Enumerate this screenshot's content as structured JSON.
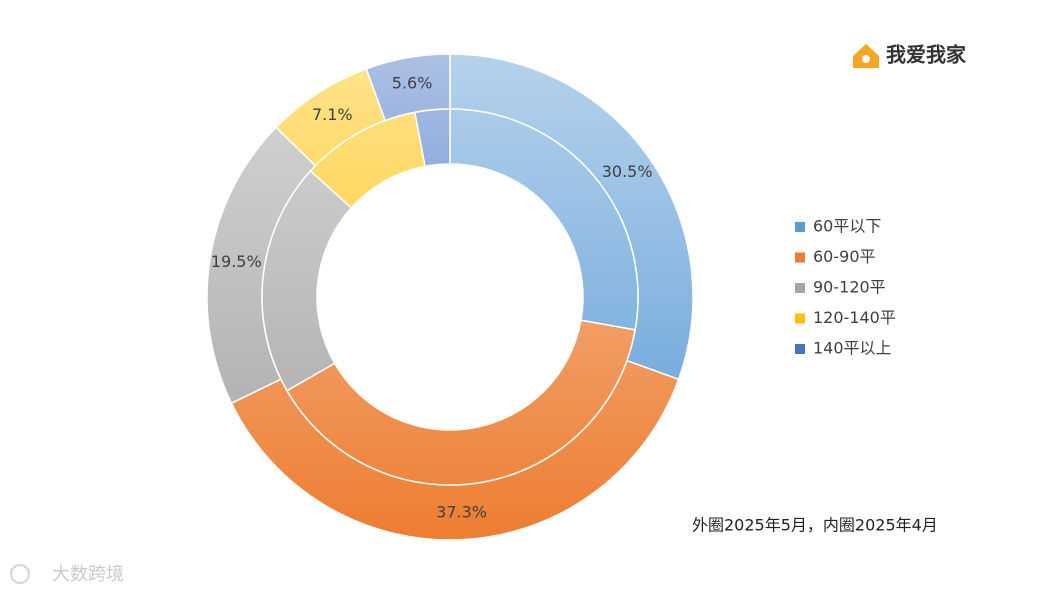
{
  "chart_data": {
    "type": "donut",
    "categories": [
      "60平以下",
      "60-90平",
      "90-120平",
      "120-140平",
      "140平以上"
    ],
    "colors": [
      "#5b9bd5",
      "#ed7d31",
      "#a5a5a5",
      "#ffc000",
      "#4472c4"
    ],
    "series": [
      {
        "values": [
          30.5,
          37.3,
          19.5,
          7.1,
          5.6
        ],
        "value_labels": [
          "30.5%",
          "37.3%",
          "19.5%",
          "7.1%",
          "5.6%"
        ]
      },
      {
        "values": [
          27.8,
          38.9,
          20.0,
          10.3,
          3.0
        ]
      }
    ],
    "note": "外圈2025年5月，内圈2025年4月",
    "legend": "right"
  },
  "logo": "我爱我家",
  "watermark": "大数跨境"
}
